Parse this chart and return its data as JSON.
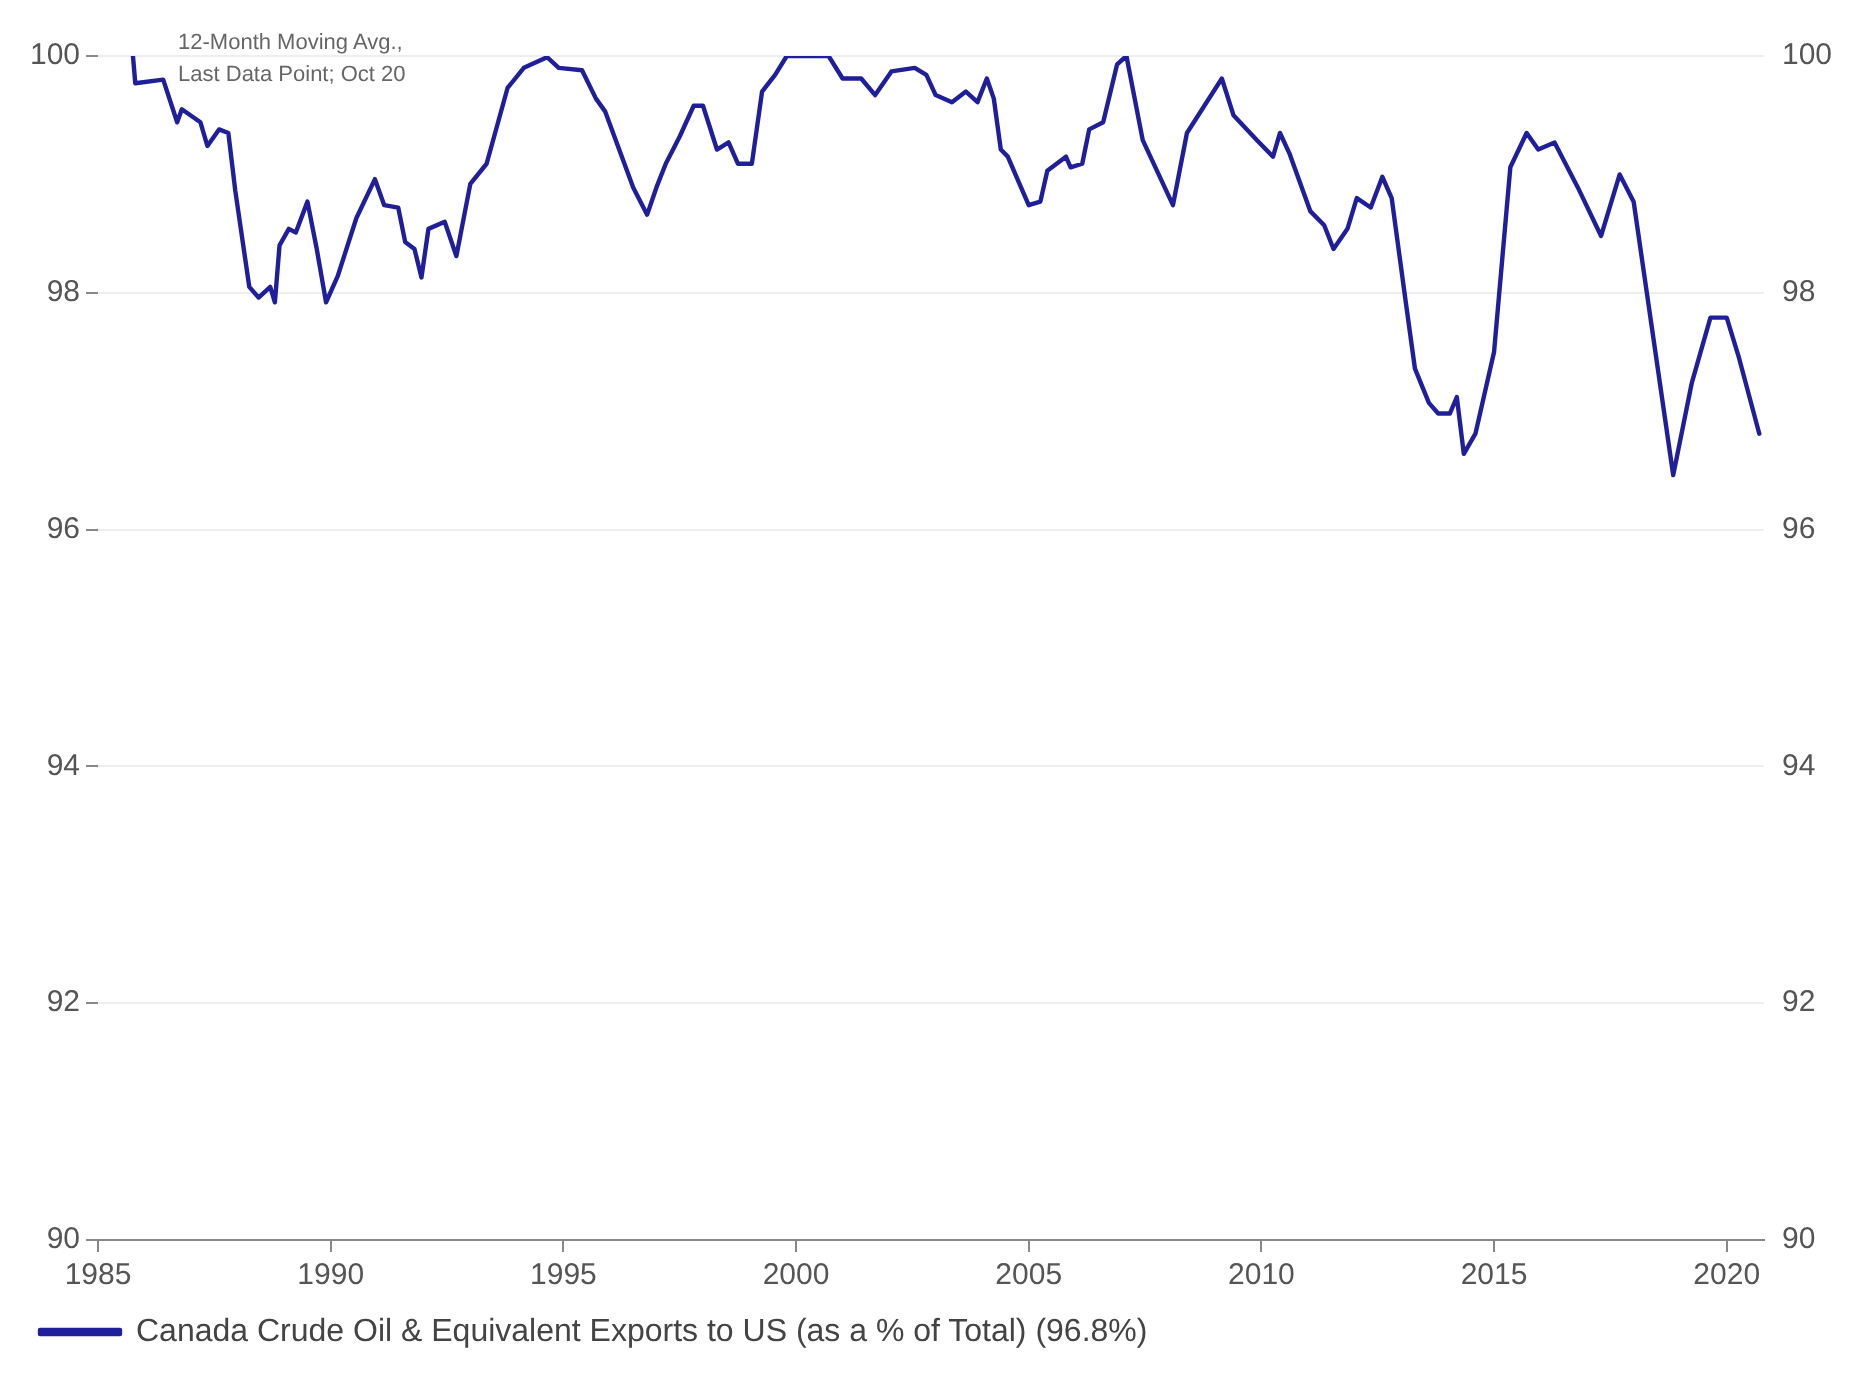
{
  "chart_data": {
    "type": "line",
    "annotations": [
      "12-Month Moving Avg.,\nLast Data Point; Oct 20"
    ],
    "xlim": [
      1985,
      2020.8
    ],
    "xticks": [
      1985,
      1990,
      1995,
      2000,
      2005,
      2010,
      2015,
      2020
    ],
    "ylim": [
      90,
      100
    ],
    "yticks": [
      90,
      92,
      94,
      96,
      98,
      100
    ],
    "y2lim": [
      90,
      100
    ],
    "y2ticks": [
      90,
      92,
      94,
      96,
      98,
      100
    ],
    "grid": "y",
    "legend": "bottom",
    "marker": "none",
    "line_style": "solid",
    "series": [
      {
        "name": "Canada Crude Oil & Equivalent Exports to US (as a % of Total) (96.8%)",
        "color": "#1f1f9c",
        "x": [
          1985.75,
          1985.8,
          1986.4,
          1986.7,
          1986.8,
          1987.2,
          1987.35,
          1987.6,
          1987.8,
          1987.95,
          1988.25,
          1988.45,
          1988.7,
          1988.8,
          1988.9,
          1989.1,
          1989.25,
          1989.5,
          1989.7,
          1989.9,
          1990.15,
          1990.55,
          1990.95,
          1991.15,
          1991.45,
          1991.6,
          1991.8,
          1991.95,
          1992.1,
          1992.45,
          1992.7,
          1993.0,
          1993.35,
          1993.8,
          1994.15,
          1994.65,
          1994.9,
          1995.4,
          1995.7,
          1995.9,
          1996.5,
          1996.8,
          1997.0,
          1997.2,
          1997.5,
          1997.8,
          1998.0,
          1998.3,
          1998.55,
          1998.75,
          1999.05,
          1999.27,
          1999.55,
          1999.8,
          2000.7,
          2001.0,
          2001.4,
          2001.7,
          2002.05,
          2002.55,
          2002.8,
          2003.0,
          2003.35,
          2003.65,
          2003.9,
          2004.1,
          2004.25,
          2004.4,
          2004.55,
          2005.0,
          2005.25,
          2005.4,
          2005.8,
          2005.9,
          2006.15,
          2006.3,
          2006.6,
          2006.9,
          2007.1,
          2007.45,
          2008.1,
          2008.4,
          2009.15,
          2009.4,
          2009.9,
          2010.25,
          2010.4,
          2010.6,
          2011.05,
          2011.35,
          2011.55,
          2011.85,
          2012.05,
          2012.35,
          2012.6,
          2012.8,
          2013.1,
          2013.3,
          2013.6,
          2013.8,
          2014.05,
          2014.2,
          2014.35,
          2014.6,
          2015.0,
          2015.35,
          2015.7,
          2015.95,
          2016.3,
          2016.8,
          2017.3,
          2017.7,
          2018.0,
          2018.85,
          2019.25,
          2019.65,
          2020.0,
          2020.25,
          2020.7
        ],
        "values": [
          100.0,
          99.77,
          99.8,
          99.44,
          99.55,
          99.44,
          99.24,
          99.38,
          99.35,
          98.86,
          98.05,
          97.96,
          98.05,
          97.92,
          98.4,
          98.54,
          98.51,
          98.77,
          98.37,
          97.92,
          98.14,
          98.63,
          98.96,
          98.74,
          98.72,
          98.43,
          98.37,
          98.13,
          98.54,
          98.6,
          98.31,
          98.92,
          99.09,
          99.73,
          99.9,
          99.99,
          99.9,
          99.88,
          99.64,
          99.53,
          98.89,
          98.66,
          98.89,
          99.09,
          99.32,
          99.58,
          99.58,
          99.21,
          99.27,
          99.09,
          99.09,
          99.7,
          99.84,
          100.0,
          100.0,
          99.81,
          99.81,
          99.67,
          99.87,
          99.9,
          99.84,
          99.67,
          99.61,
          99.7,
          99.61,
          99.81,
          99.64,
          99.21,
          99.15,
          98.74,
          98.77,
          99.03,
          99.15,
          99.06,
          99.09,
          99.38,
          99.44,
          99.93,
          100.0,
          99.29,
          98.74,
          99.35,
          99.81,
          99.5,
          99.29,
          99.15,
          99.35,
          99.18,
          98.69,
          98.57,
          98.37,
          98.54,
          98.8,
          98.72,
          98.98,
          98.8,
          97.93,
          97.36,
          97.07,
          96.98,
          96.98,
          97.12,
          96.64,
          96.81,
          97.5,
          99.06,
          99.35,
          99.21,
          99.27,
          98.89,
          98.48,
          99.0,
          98.77,
          96.46,
          97.24,
          97.79,
          97.79,
          97.47,
          96.81
        ]
      }
    ]
  }
}
